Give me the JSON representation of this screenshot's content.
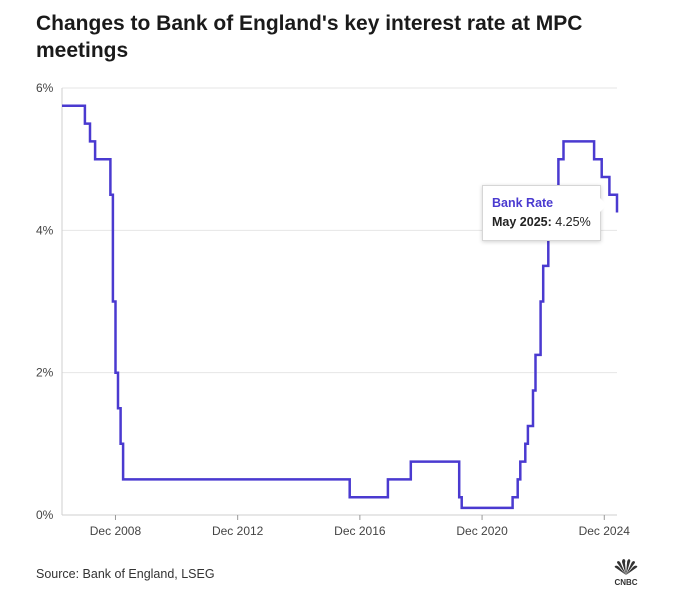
{
  "title": "Changes to Bank of England's key interest rate at MPC meetings",
  "source": "Source: Bank of England, LSEG",
  "logo_text": "CNBC",
  "tooltip": {
    "series": "Bank Rate",
    "date_label": "May 2025:",
    "value_label": "4.25%"
  },
  "colors": {
    "line": "#4a3ad0",
    "grid": "#e6e6e6",
    "axis": "#cfcfcf"
  },
  "chart_data": {
    "type": "line",
    "step": true,
    "title": "Changes to Bank of England's key interest rate at MPC meetings",
    "xlabel": "",
    "ylabel": "",
    "x_range": [
      "2007-03",
      "2025-05"
    ],
    "ylim": [
      0,
      6
    ],
    "y_ticks": [
      {
        "value": 0,
        "label": "0%"
      },
      {
        "value": 2,
        "label": "2%"
      },
      {
        "value": 4,
        "label": "4%"
      },
      {
        "value": 6,
        "label": "6%"
      }
    ],
    "x_ticks": [
      {
        "value": "2008-12",
        "label": "Dec 2008"
      },
      {
        "value": "2012-12",
        "label": "Dec 2012"
      },
      {
        "value": "2016-12",
        "label": "Dec 2016"
      },
      {
        "value": "2020-12",
        "label": "Dec 2020"
      },
      {
        "value": "2024-12",
        "label": "Dec 2024"
      }
    ],
    "grid": true,
    "series": [
      {
        "name": "Bank Rate",
        "points": [
          {
            "x": "2007-03",
            "y": 5.75
          },
          {
            "x": "2007-12",
            "y": 5.5
          },
          {
            "x": "2008-02",
            "y": 5.25
          },
          {
            "x": "2008-04",
            "y": 5.0
          },
          {
            "x": "2008-10",
            "y": 4.5
          },
          {
            "x": "2008-11",
            "y": 3.0
          },
          {
            "x": "2008-12",
            "y": 2.0
          },
          {
            "x": "2009-01",
            "y": 1.5
          },
          {
            "x": "2009-02",
            "y": 1.0
          },
          {
            "x": "2009-03",
            "y": 0.5
          },
          {
            "x": "2016-08",
            "y": 0.25
          },
          {
            "x": "2017-11",
            "y": 0.5
          },
          {
            "x": "2018-08",
            "y": 0.75
          },
          {
            "x": "2020-03",
            "y": 0.25
          },
          {
            "x": "2020-04",
            "y": 0.1
          },
          {
            "x": "2021-12",
            "y": 0.25
          },
          {
            "x": "2022-02",
            "y": 0.5
          },
          {
            "x": "2022-03",
            "y": 0.75
          },
          {
            "x": "2022-05",
            "y": 1.0
          },
          {
            "x": "2022-06",
            "y": 1.25
          },
          {
            "x": "2022-08",
            "y": 1.75
          },
          {
            "x": "2022-09",
            "y": 2.25
          },
          {
            "x": "2022-11",
            "y": 3.0
          },
          {
            "x": "2022-12",
            "y": 3.5
          },
          {
            "x": "2023-02",
            "y": 4.0
          },
          {
            "x": "2023-03",
            "y": 4.25
          },
          {
            "x": "2023-05",
            "y": 4.5
          },
          {
            "x": "2023-06",
            "y": 5.0
          },
          {
            "x": "2023-08",
            "y": 5.25
          },
          {
            "x": "2024-08",
            "y": 5.0
          },
          {
            "x": "2024-11",
            "y": 4.75
          },
          {
            "x": "2025-02",
            "y": 4.5
          },
          {
            "x": "2025-05",
            "y": 4.25
          }
        ]
      }
    ]
  }
}
